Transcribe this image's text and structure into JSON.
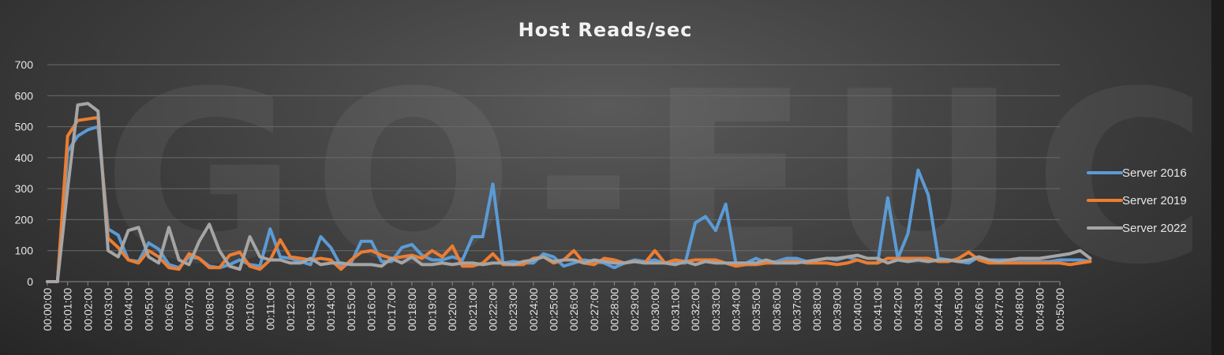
{
  "watermark": "GO-EUC",
  "chart_data": {
    "type": "line",
    "title": "Host Reads/sec",
    "xlabel": "",
    "ylabel": "",
    "ylim": [
      0,
      700
    ],
    "yticks": [
      0,
      100,
      200,
      300,
      400,
      500,
      600,
      700
    ],
    "grid": true,
    "legend_position": "right",
    "x_tick_labels": [
      "00:00:00",
      "00:01:00",
      "00:02:00",
      "00:03:00",
      "00:04:00",
      "00:05:00",
      "00:06:00",
      "00:07:00",
      "00:08:00",
      "00:09:00",
      "00:10:00",
      "00:11:00",
      "00:12:00",
      "00:13:00",
      "00:14:00",
      "00:15:00",
      "00:16:00",
      "00:17:00",
      "00:18:00",
      "00:19:00",
      "00:20:00",
      "00:21:00",
      "00:22:00",
      "00:23:00",
      "00:24:00",
      "00:25:00",
      "00:26:00",
      "00:27:00",
      "00:28:00",
      "00:29:00",
      "00:30:00",
      "00:31:00",
      "00:32:00",
      "00:33:00",
      "00:34:00",
      "00:35:00",
      "00:36:00",
      "00:37:00",
      "00:38:00",
      "00:39:00",
      "00:40:00",
      "00:41:00",
      "00:42:00",
      "00:43:00",
      "00:44:00",
      "00:45:00",
      "00:46:00",
      "00:47:00",
      "00:48:00",
      "00:49:00",
      "00:50:00"
    ],
    "x_step_seconds": 30,
    "series": [
      {
        "name": "Server 2016",
        "color": "#5b9bd5",
        "values": [
          0,
          0,
          420,
          470,
          490,
          500,
          170,
          150,
          70,
          65,
          125,
          105,
          55,
          45,
          80,
          75,
          50,
          45,
          55,
          70,
          55,
          50,
          170,
          80,
          75,
          65,
          55,
          145,
          110,
          50,
          60,
          130,
          130,
          65,
          65,
          110,
          120,
          85,
          70,
          70,
          80,
          70,
          145,
          145,
          315,
          60,
          65,
          60,
          60,
          90,
          80,
          50,
          60,
          70,
          65,
          60,
          45,
          60,
          70,
          65,
          70,
          60,
          60,
          60,
          190,
          210,
          165,
          250,
          60,
          60,
          75,
          60,
          65,
          75,
          75,
          65,
          70,
          75,
          70,
          80,
          70,
          60,
          60,
          270,
          75,
          155,
          360,
          280,
          75,
          70,
          65,
          60,
          80,
          70,
          70,
          70,
          70,
          65,
          65,
          65,
          70,
          70,
          70,
          65
        ]
      },
      {
        "name": "Server 2019",
        "color": "#ed7d31",
        "values": [
          0,
          0,
          470,
          520,
          525,
          530,
          140,
          110,
          70,
          60,
          100,
          80,
          45,
          40,
          90,
          75,
          45,
          45,
          85,
          95,
          50,
          40,
          70,
          135,
          80,
          75,
          70,
          75,
          70,
          40,
          70,
          95,
          100,
          85,
          75,
          80,
          85,
          75,
          100,
          80,
          115,
          50,
          50,
          60,
          90,
          55,
          55,
          55,
          75,
          80,
          60,
          70,
          100,
          60,
          55,
          75,
          70,
          60,
          65,
          60,
          100,
          60,
          70,
          65,
          70,
          70,
          70,
          60,
          50,
          55,
          55,
          60,
          60,
          65,
          65,
          60,
          60,
          60,
          55,
          60,
          70,
          60,
          60,
          75,
          75,
          75,
          75,
          75,
          65,
          65,
          75,
          95,
          70,
          60,
          60,
          60,
          60,
          60,
          60,
          60,
          60,
          55,
          60,
          65
        ]
      },
      {
        "name": "Server 2022",
        "color": "#a5a5a5",
        "values": [
          0,
          0,
          300,
          570,
          575,
          550,
          100,
          80,
          165,
          175,
          80,
          60,
          175,
          70,
          55,
          130,
          185,
          100,
          50,
          40,
          145,
          80,
          70,
          70,
          60,
          60,
          75,
          55,
          60,
          60,
          55,
          55,
          55,
          50,
          75,
          60,
          80,
          55,
          55,
          60,
          55,
          60,
          60,
          55,
          60,
          60,
          55,
          65,
          70,
          80,
          65,
          70,
          70,
          60,
          70,
          65,
          60,
          60,
          65,
          60,
          60,
          60,
          55,
          65,
          55,
          65,
          60,
          60,
          60,
          60,
          60,
          70,
          60,
          60,
          60,
          65,
          70,
          75,
          75,
          80,
          85,
          75,
          75,
          60,
          70,
          65,
          70,
          65,
          70,
          70,
          65,
          70,
          80,
          70,
          65,
          70,
          75,
          75,
          75,
          80,
          85,
          90,
          100,
          75
        ]
      }
    ]
  }
}
